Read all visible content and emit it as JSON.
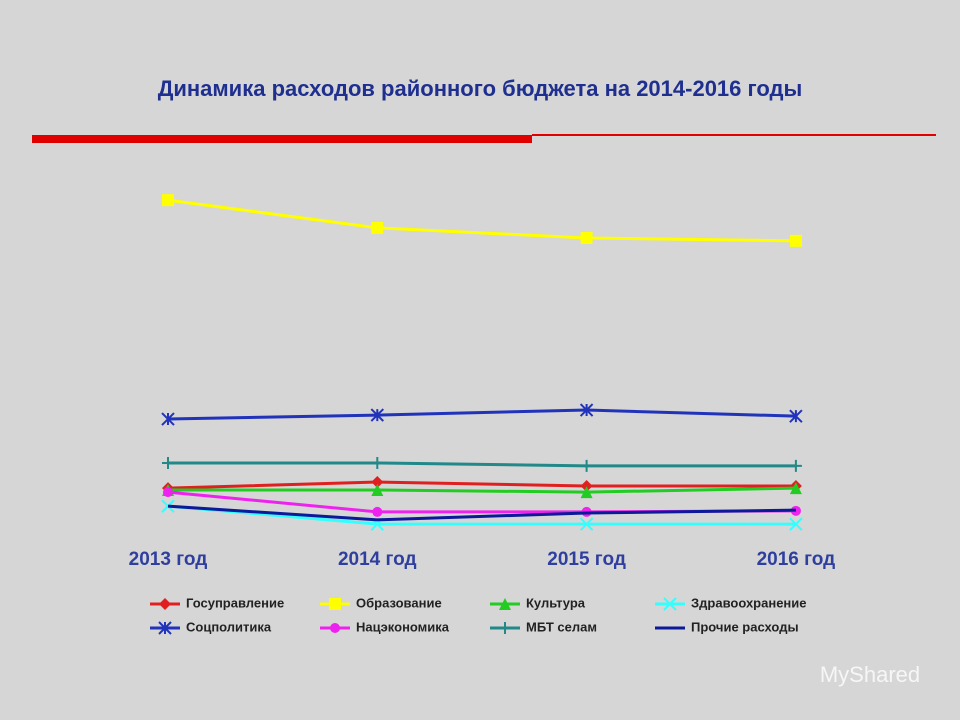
{
  "chart_data": {
    "type": "line",
    "title": "Динамика расходов районного бюджета на 2014-2016 годы",
    "categories": [
      "2013 год",
      "2014 год",
      "2015 год",
      "2016 год"
    ],
    "ylim": [
      0,
      100
    ],
    "series": [
      {
        "name": "Госуправление",
        "color": "#e02020",
        "marker": "diamond",
        "values": [
          14.4,
          16.1,
          15,
          15
        ]
      },
      {
        "name": "Образование",
        "color": "#ffff00",
        "marker": "square",
        "values": [
          94.4,
          86.7,
          83.9,
          83.1
        ]
      },
      {
        "name": "Культура",
        "color": "#22cc22",
        "marker": "triangle",
        "values": [
          13.9,
          13.9,
          13.3,
          14.4
        ]
      },
      {
        "name": "Здравоохранение",
        "color": "#33ffff",
        "marker": "cross",
        "values": [
          9.4,
          4.4,
          4.4,
          4.4
        ]
      },
      {
        "name": "Соцполитика",
        "color": "#2233bb",
        "marker": "star",
        "values": [
          33.6,
          34.7,
          36.1,
          34.4
        ]
      },
      {
        "name": "Нацэкономика",
        "color": "#ee22ee",
        "marker": "circle",
        "values": [
          13.3,
          7.8,
          7.8,
          8.1
        ]
      },
      {
        "name": "МБТ селам",
        "color": "#228888",
        "marker": "plus",
        "values": [
          21.4,
          21.4,
          20.6,
          20.6
        ]
      },
      {
        "name": "Прочие расходы",
        "color": "#0a1a99",
        "marker": "none",
        "values": [
          9.4,
          5.6,
          7.5,
          8.3
        ]
      }
    ]
  },
  "watermark": "MyShared"
}
